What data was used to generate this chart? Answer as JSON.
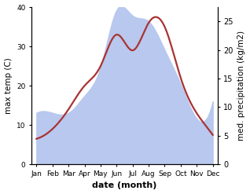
{
  "months": [
    "Jan",
    "Feb",
    "Mar",
    "Apr",
    "May",
    "Jun",
    "Jul",
    "Aug",
    "Sep",
    "Oct",
    "Nov",
    "Dec"
  ],
  "month_positions": [
    0,
    1,
    2,
    3,
    4,
    5,
    6,
    7,
    8,
    9,
    10,
    11
  ],
  "temp": [
    6.5,
    9.0,
    14.0,
    20.0,
    25.0,
    33.0,
    29.0,
    36.0,
    35.0,
    22.0,
    13.0,
    7.5
  ],
  "precip": [
    9.0,
    9.0,
    9.0,
    12.0,
    17.0,
    27.0,
    26.0,
    25.0,
    20.0,
    14.0,
    8.0,
    11.0
  ],
  "temp_color": "#aa3333",
  "precip_color": "#b8c8ee",
  "temp_ylim": [
    0,
    40
  ],
  "precip_ylim": [
    0,
    27.5
  ],
  "xlabel": "date (month)",
  "ylabel_left": "max temp (C)",
  "ylabel_right": "med. precipitation (kg/m2)",
  "temp_linewidth": 1.6,
  "bg_color": "#ffffff"
}
